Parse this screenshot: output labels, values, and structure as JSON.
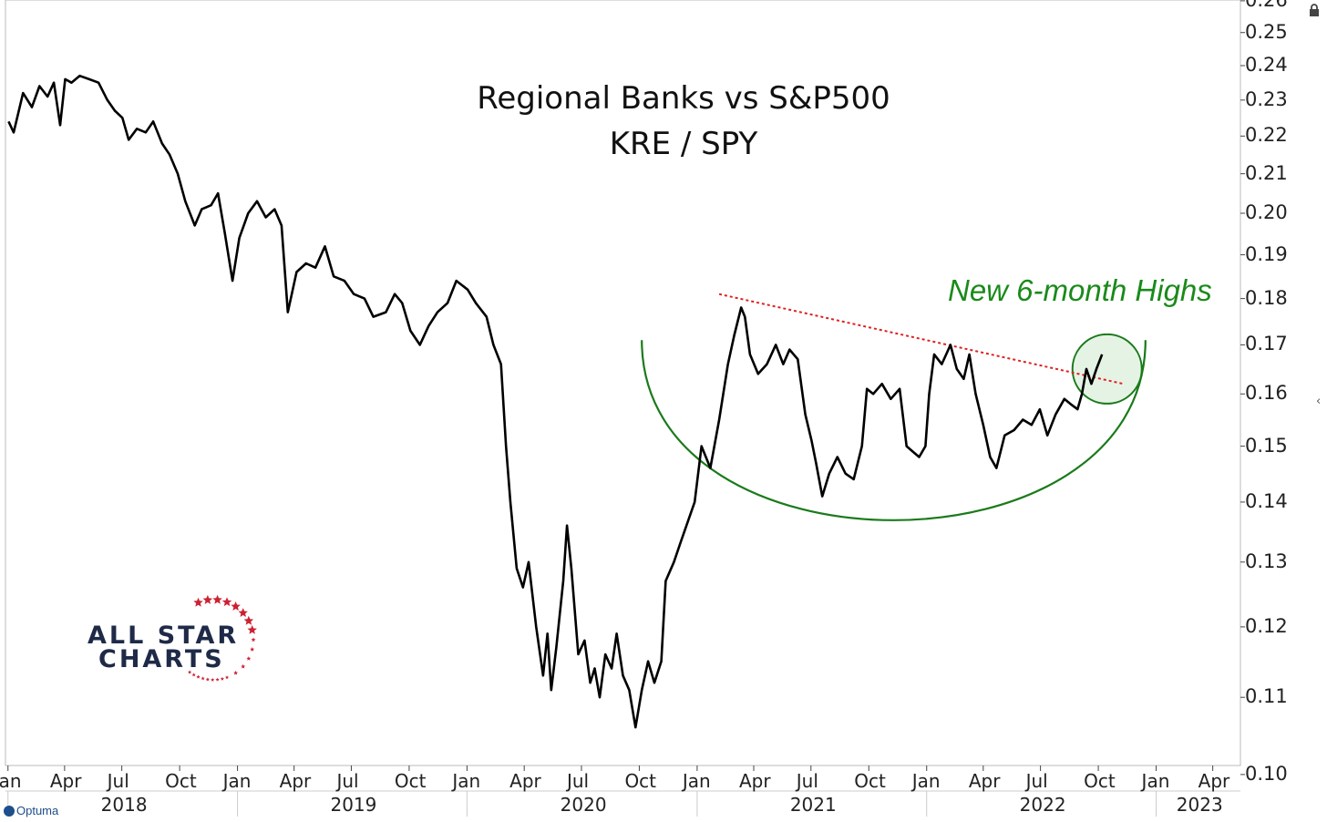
{
  "chart_data": {
    "type": "line",
    "title": "Regional Banks vs S&P500",
    "subtitle": "KRE / SPY",
    "annotation": "New 6-month Highs",
    "yscale": "log",
    "ylim": [
      0.1,
      0.26
    ],
    "y_ticks": [
      "0.26",
      "0.25",
      "0.24",
      "0.23",
      "0.22",
      "0.21",
      "0.20",
      "0.19",
      "0.18",
      "0.17",
      "0.16",
      "0.15",
      "0.14",
      "0.13",
      "0.12",
      "0.11",
      "0.10"
    ],
    "xlim": [
      "2017-12-28",
      "2023-05-15"
    ],
    "x_month_ticks": [
      {
        "date": "2018-01-01",
        "label": "Jan"
      },
      {
        "date": "2018-04-01",
        "label": "Apr"
      },
      {
        "date": "2018-07-01",
        "label": "Jul"
      },
      {
        "date": "2018-10-01",
        "label": "Oct"
      },
      {
        "date": "2019-01-01",
        "label": "Jan"
      },
      {
        "date": "2019-04-01",
        "label": "Apr"
      },
      {
        "date": "2019-07-01",
        "label": "Jul"
      },
      {
        "date": "2019-10-01",
        "label": "Oct"
      },
      {
        "date": "2020-01-01",
        "label": "Jan"
      },
      {
        "date": "2020-04-01",
        "label": "Apr"
      },
      {
        "date": "2020-07-01",
        "label": "Jul"
      },
      {
        "date": "2020-10-01",
        "label": "Oct"
      },
      {
        "date": "2021-01-01",
        "label": "Jan"
      },
      {
        "date": "2021-04-01",
        "label": "Apr"
      },
      {
        "date": "2021-07-01",
        "label": "Jul"
      },
      {
        "date": "2021-10-01",
        "label": "Oct"
      },
      {
        "date": "2022-01-01",
        "label": "Jan"
      },
      {
        "date": "2022-04-01",
        "label": "Apr"
      },
      {
        "date": "2022-07-01",
        "label": "Jul"
      },
      {
        "date": "2022-10-01",
        "label": "Oct"
      },
      {
        "date": "2023-01-01",
        "label": "Jan"
      },
      {
        "date": "2023-04-01",
        "label": "Apr"
      }
    ],
    "x_year_labels": [
      "2018",
      "2019",
      "2020",
      "2021",
      "2022",
      "2023"
    ],
    "series": [
      {
        "line_color": "#000000",
        "points": [
          [
            "2018-01-02",
            0.224
          ],
          [
            "2018-01-10",
            0.221
          ],
          [
            "2018-01-25",
            0.232
          ],
          [
            "2018-02-08",
            0.228
          ],
          [
            "2018-02-20",
            0.234
          ],
          [
            "2018-03-05",
            0.231
          ],
          [
            "2018-03-15",
            0.235
          ],
          [
            "2018-03-25",
            0.223
          ],
          [
            "2018-04-02",
            0.236
          ],
          [
            "2018-04-12",
            0.235
          ],
          [
            "2018-04-25",
            0.237
          ],
          [
            "2018-05-10",
            0.236
          ],
          [
            "2018-05-25",
            0.235
          ],
          [
            "2018-06-08",
            0.23
          ],
          [
            "2018-06-20",
            0.227
          ],
          [
            "2018-07-02",
            0.225
          ],
          [
            "2018-07-12",
            0.219
          ],
          [
            "2018-07-25",
            0.222
          ],
          [
            "2018-08-08",
            0.221
          ],
          [
            "2018-08-20",
            0.224
          ],
          [
            "2018-09-03",
            0.218
          ],
          [
            "2018-09-15",
            0.215
          ],
          [
            "2018-09-28",
            0.21
          ],
          [
            "2018-10-10",
            0.203
          ],
          [
            "2018-10-25",
            0.197
          ],
          [
            "2018-11-05",
            0.201
          ],
          [
            "2018-11-20",
            0.202
          ],
          [
            "2018-12-01",
            0.205
          ],
          [
            "2018-12-12",
            0.195
          ],
          [
            "2018-12-24",
            0.184
          ],
          [
            "2019-01-04",
            0.194
          ],
          [
            "2019-01-18",
            0.2
          ],
          [
            "2019-02-01",
            0.203
          ],
          [
            "2019-02-15",
            0.199
          ],
          [
            "2019-03-01",
            0.201
          ],
          [
            "2019-03-12",
            0.197
          ],
          [
            "2019-03-22",
            0.177
          ],
          [
            "2019-04-05",
            0.186
          ],
          [
            "2019-04-20",
            0.188
          ],
          [
            "2019-05-05",
            0.187
          ],
          [
            "2019-05-20",
            0.192
          ],
          [
            "2019-06-03",
            0.185
          ],
          [
            "2019-06-20",
            0.184
          ],
          [
            "2019-07-05",
            0.181
          ],
          [
            "2019-07-22",
            0.18
          ],
          [
            "2019-08-05",
            0.176
          ],
          [
            "2019-08-25",
            0.177
          ],
          [
            "2019-09-08",
            0.181
          ],
          [
            "2019-09-20",
            0.179
          ],
          [
            "2019-10-03",
            0.173
          ],
          [
            "2019-10-18",
            0.17
          ],
          [
            "2019-11-01",
            0.174
          ],
          [
            "2019-11-15",
            0.177
          ],
          [
            "2019-12-01",
            0.179
          ],
          [
            "2019-12-15",
            0.184
          ],
          [
            "2020-01-02",
            0.182
          ],
          [
            "2020-01-15",
            0.179
          ],
          [
            "2020-02-01",
            0.176
          ],
          [
            "2020-02-12",
            0.17
          ],
          [
            "2020-02-24",
            0.166
          ],
          [
            "2020-03-03",
            0.15
          ],
          [
            "2020-03-10",
            0.14
          ],
          [
            "2020-03-20",
            0.129
          ],
          [
            "2020-03-30",
            0.126
          ],
          [
            "2020-04-08",
            0.13
          ],
          [
            "2020-04-20",
            0.12
          ],
          [
            "2020-05-01",
            0.113
          ],
          [
            "2020-05-08",
            0.119
          ],
          [
            "2020-05-14",
            0.111
          ],
          [
            "2020-05-22",
            0.117
          ],
          [
            "2020-06-02",
            0.127
          ],
          [
            "2020-06-08",
            0.136
          ],
          [
            "2020-06-15",
            0.129
          ],
          [
            "2020-06-26",
            0.116
          ],
          [
            "2020-07-06",
            0.118
          ],
          [
            "2020-07-15",
            0.112
          ],
          [
            "2020-07-22",
            0.114
          ],
          [
            "2020-07-30",
            0.11
          ],
          [
            "2020-08-08",
            0.116
          ],
          [
            "2020-08-18",
            0.114
          ],
          [
            "2020-08-26",
            0.119
          ],
          [
            "2020-09-05",
            0.113
          ],
          [
            "2020-09-15",
            0.111
          ],
          [
            "2020-09-25",
            0.106
          ],
          [
            "2020-10-05",
            0.111
          ],
          [
            "2020-10-15",
            0.115
          ],
          [
            "2020-10-25",
            0.112
          ],
          [
            "2020-11-05",
            0.115
          ],
          [
            "2020-11-12",
            0.127
          ],
          [
            "2020-11-25",
            0.13
          ],
          [
            "2020-12-05",
            0.133
          ],
          [
            "2020-12-15",
            0.136
          ],
          [
            "2020-12-28",
            0.14
          ],
          [
            "2021-01-08",
            0.15
          ],
          [
            "2021-01-22",
            0.146
          ],
          [
            "2021-02-05",
            0.155
          ],
          [
            "2021-02-19",
            0.166
          ],
          [
            "2021-03-01",
            0.172
          ],
          [
            "2021-03-12",
            0.178
          ],
          [
            "2021-03-18",
            0.176
          ],
          [
            "2021-03-26",
            0.168
          ],
          [
            "2021-04-08",
            0.164
          ],
          [
            "2021-04-22",
            0.166
          ],
          [
            "2021-05-06",
            0.17
          ],
          [
            "2021-05-18",
            0.166
          ],
          [
            "2021-05-28",
            0.169
          ],
          [
            "2021-06-10",
            0.167
          ],
          [
            "2021-06-22",
            0.156
          ],
          [
            "2021-07-02",
            0.151
          ],
          [
            "2021-07-09",
            0.147
          ],
          [
            "2021-07-19",
            0.141
          ],
          [
            "2021-07-30",
            0.145
          ],
          [
            "2021-08-12",
            0.148
          ],
          [
            "2021-08-25",
            0.145
          ],
          [
            "2021-09-07",
            0.144
          ],
          [
            "2021-09-20",
            0.15
          ],
          [
            "2021-09-28",
            0.161
          ],
          [
            "2021-10-08",
            0.16
          ],
          [
            "2021-10-22",
            0.162
          ],
          [
            "2021-11-05",
            0.159
          ],
          [
            "2021-11-19",
            0.161
          ],
          [
            "2021-11-30",
            0.15
          ],
          [
            "2021-12-10",
            0.149
          ],
          [
            "2021-12-20",
            0.148
          ],
          [
            "2021-12-30",
            0.15
          ],
          [
            "2022-01-05",
            0.16
          ],
          [
            "2022-01-13",
            0.168
          ],
          [
            "2022-01-25",
            0.166
          ],
          [
            "2022-02-08",
            0.17
          ],
          [
            "2022-02-18",
            0.165
          ],
          [
            "2022-03-01",
            0.163
          ],
          [
            "2022-03-10",
            0.168
          ],
          [
            "2022-03-20",
            0.16
          ],
          [
            "2022-04-01",
            0.154
          ],
          [
            "2022-04-12",
            0.148
          ],
          [
            "2022-04-22",
            0.146
          ],
          [
            "2022-05-05",
            0.152
          ],
          [
            "2022-05-20",
            0.153
          ],
          [
            "2022-06-03",
            0.155
          ],
          [
            "2022-06-17",
            0.154
          ],
          [
            "2022-06-30",
            0.157
          ],
          [
            "2022-07-12",
            0.152
          ],
          [
            "2022-07-25",
            0.156
          ],
          [
            "2022-08-08",
            0.159
          ],
          [
            "2022-08-18",
            0.158
          ],
          [
            "2022-08-29",
            0.157
          ],
          [
            "2022-09-05",
            0.16
          ],
          [
            "2022-09-12",
            0.165
          ],
          [
            "2022-09-20",
            0.162
          ],
          [
            "2022-09-28",
            0.165
          ],
          [
            "2022-10-07",
            0.168
          ]
        ]
      }
    ],
    "overlays": {
      "trendline": {
        "color": "#dd2222",
        "style": "dotted",
        "points": [
          [
            "2021-02-05",
            0.181
          ],
          [
            "2022-11-10",
            0.162
          ]
        ]
      },
      "base_arc": {
        "color": "#1a7a1a",
        "from": [
          "2020-10-05",
          0.171
        ],
        "bottom": [
          "2021-11-01",
          0.136
        ],
        "to": [
          "2022-12-15",
          0.171
        ]
      },
      "highlight_circle": {
        "color": "#1a7a1a",
        "fill": "#dcefdc",
        "center": [
          "2022-10-15",
          0.165
        ]
      }
    }
  },
  "branding": {
    "logo_line1": "ALL STAR",
    "logo_line2": "CHARTS",
    "platform": "Optuma",
    "star_color": "#cc2233",
    "text_color": "#1e2a47"
  }
}
